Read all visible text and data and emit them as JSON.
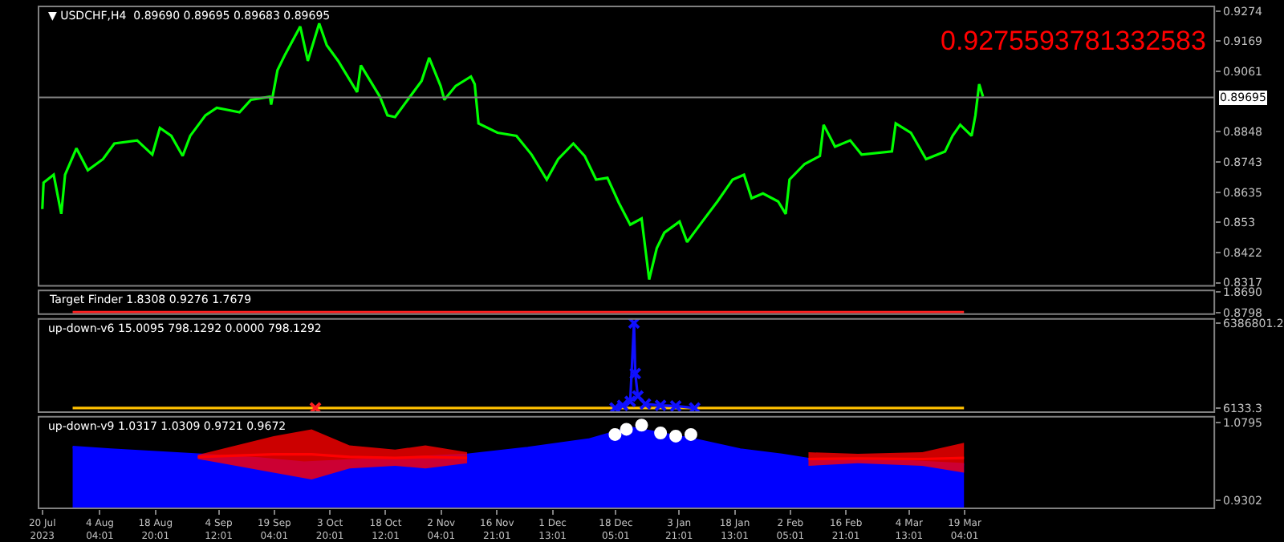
{
  "chart_data": [
    {
      "type": "line",
      "title": "▼ USDCHF,H4  0.89690 0.89695 0.89683 0.89695",
      "annotations": [
        "0.9275593781332583"
      ],
      "tick_labels": "y",
      "xlim": [
        "2023-07-19",
        "2024-05-24"
      ],
      "ylim": [
        0.8306,
        0.929
      ],
      "yticks": [
        0.9274,
        0.9169,
        0.9061,
        0.8848,
        0.8743,
        0.8635,
        0.853,
        0.8422,
        0.8317
      ],
      "ref_lines": [
        {
          "axis": "y",
          "value": 0.89695,
          "label": "0.89695",
          "color": "#808080"
        }
      ],
      "series": [
        {
          "color": "#00ff00",
          "x": [
            "2023-07-20",
            "2023-07-20T08:00",
            "2023-07-23",
            "2023-07-25",
            "2023-07-26",
            "2023-07-29",
            "2023-08-01",
            "2023-08-05",
            "2023-08-08",
            "2023-08-14",
            "2023-08-18",
            "2023-08-20",
            "2023-08-23",
            "2023-08-26",
            "2023-08-28",
            "2023-09-01",
            "2023-09-04",
            "2023-09-10",
            "2023-09-13",
            "2023-09-18",
            "2023-09-18T08:00",
            "2023-09-20",
            "2023-09-22",
            "2023-09-26",
            "2023-09-28",
            "2023-10-01",
            "2023-10-03",
            "2023-10-06",
            "2023-10-11",
            "2023-10-12",
            "2023-10-17",
            "2023-10-19",
            "2023-10-21",
            "2023-10-24",
            "2023-10-28",
            "2023-10-30",
            "2023-11-02",
            "2023-11-03",
            "2023-11-06",
            "2023-11-10",
            "2023-11-11",
            "2023-11-12",
            "2023-11-17",
            "2023-11-22",
            "2023-11-26",
            "2023-11-30",
            "2023-12-03",
            "2023-12-07",
            "2023-12-10",
            "2023-12-13",
            "2023-12-16",
            "2023-12-19",
            "2023-12-22",
            "2023-12-25",
            "2023-12-27",
            "2023-12-29",
            "2023-12-31",
            "2024-01-04",
            "2024-01-06",
            "2024-01-10",
            "2024-01-14",
            "2024-01-18",
            "2024-01-21",
            "2024-01-23",
            "2024-01-26",
            "2024-01-30",
            "2024-02-01",
            "2024-02-02",
            "2024-02-06",
            "2024-02-10",
            "2024-02-11",
            "2024-02-14",
            "2024-02-18",
            "2024-02-21",
            "2024-02-29",
            "2024-03-01",
            "2024-03-05",
            "2024-03-09",
            "2024-03-14",
            "2024-03-16",
            "2024-03-18",
            "2024-03-21",
            "2024-03-22",
            "2024-03-23",
            "2024-03-24"
          ],
          "values": [
            0.8576,
            0.8669,
            0.8697,
            0.8559,
            0.8697,
            0.879,
            0.8713,
            0.8752,
            0.8807,
            0.8818,
            0.8768,
            0.8862,
            0.8834,
            0.8763,
            0.8834,
            0.8906,
            0.8933,
            0.8917,
            0.8961,
            0.8972,
            0.8944,
            0.9065,
            0.912,
            0.9219,
            0.9098,
            0.923,
            0.9153,
            0.9098,
            0.8988,
            0.9082,
            0.8972,
            0.8906,
            0.89,
            0.8955,
            0.9027,
            0.9109,
            0.901,
            0.8961,
            0.901,
            0.9043,
            0.9016,
            0.8878,
            0.8845,
            0.8834,
            0.8768,
            0.868,
            0.8752,
            0.8807,
            0.8763,
            0.868,
            0.8686,
            0.8598,
            0.8521,
            0.8543,
            0.8328,
            0.8438,
            0.8493,
            0.8532,
            0.846,
            0.8532,
            0.8603,
            0.868,
            0.8697,
            0.8614,
            0.8631,
            0.8603,
            0.8559,
            0.868,
            0.8735,
            0.8763,
            0.8873,
            0.8796,
            0.8818,
            0.8768,
            0.8779,
            0.8878,
            0.8845,
            0.8752,
            0.8779,
            0.8834,
            0.8873,
            0.8834,
            0.8906,
            0.9016,
            0.8972
          ]
        }
      ]
    },
    {
      "type": "line",
      "title": "Target Finder 1.8308 0.9276 1.7679",
      "tick_labels": "y",
      "xlim": [
        "2023-07-19",
        "2024-05-24"
      ],
      "ylim": [
        0.8,
        1.95
      ],
      "yticks": [
        {
          "value": 1.869,
          "label": "1.8690"
        },
        0.8798
      ],
      "series": [
        {
          "color": "#ff2020",
          "x": [
            "2023-07-28",
            "2024-03-19"
          ],
          "values": [
            0.9,
            0.9
          ]
        }
      ]
    },
    {
      "type": "line",
      "title": "up-down-v6 15.0095 798.1292 0.0000 798.1292",
      "tick_labels": "y",
      "xlim": [
        "2023-07-19",
        "2024-05-24"
      ],
      "ylim": [
        -300000,
        6700000
      ],
      "yticks": [
        6386801.2,
        6133.3
      ],
      "series": [
        {
          "color": "#ffc000",
          "x": [
            "2023-07-28",
            "2024-03-19"
          ],
          "values": [
            6133.3,
            6133.3
          ]
        },
        {
          "color": "#1010ff",
          "marker": "cross",
          "x": [
            "2023-12-18",
            "2023-12-20",
            "2023-12-22",
            "2023-12-23",
            "2023-12-23T08:00",
            "2023-12-24",
            "2023-12-26",
            "2023-12-30",
            "2024-01-03",
            "2024-01-08"
          ],
          "values": [
            6133.3,
            200000,
            500000,
            6386801.2,
            2600000,
            900000,
            300000,
            200000,
            150000,
            6133.3
          ]
        },
        {
          "type": "scatter",
          "color": "#ff2020",
          "marker": "cross",
          "x": [
            "2023-09-30"
          ],
          "values": [
            6133.3
          ]
        }
      ]
    },
    {
      "type": "area",
      "title": "up-down-v9 1.0317 1.0309 0.9721 0.9672",
      "xlim": [
        "2023-07-19",
        "2024-05-24"
      ],
      "ylim": [
        0.9145,
        1.09
      ],
      "yticks": [
        1.0795,
        0.9302
      ],
      "xticks": [
        {
          "value": "2023-07-20",
          "label": "20 Jul 2023"
        },
        {
          "value": "2023-08-04T04:01",
          "label": "4 Aug 04:01"
        },
        {
          "value": "2023-08-18T20:01",
          "label": "18 Aug 20:01"
        },
        {
          "value": "2023-09-04T12:01",
          "label": "4 Sep 12:01"
        },
        {
          "value": "2023-09-19T04:01",
          "label": "19 Sep 04:01"
        },
        {
          "value": "2023-10-03T20:01",
          "label": "3 Oct 20:01"
        },
        {
          "value": "2023-10-18T12:01",
          "label": "18 Oct 12:01"
        },
        {
          "value": "2023-11-02T04:01",
          "label": "2 Nov 04:01"
        },
        {
          "value": "2023-11-16T21:01",
          "label": "16 Nov 21:01"
        },
        {
          "value": "2023-12-01T13:01",
          "label": "1 Dec 13:01"
        },
        {
          "value": "2023-12-18T05:01",
          "label": "18 Dec 05:01"
        },
        {
          "value": "2024-01-03T21:01",
          "label": "3 Jan 21:01"
        },
        {
          "value": "2024-01-18T13:01",
          "label": "18 Jan 13:01"
        },
        {
          "value": "2024-02-02T05:01",
          "label": "2 Feb 05:01"
        },
        {
          "value": "2024-02-16T21:01",
          "label": "16 Feb 21:01"
        },
        {
          "value": "2024-03-04T13:01",
          "label": "4 Mar 13:01"
        },
        {
          "value": "2024-03-19T04:01",
          "label": "19 Mar 04:01"
        }
      ],
      "series": [
        {
          "color": "#0000ff",
          "x": [
            "2023-07-28",
            "2023-08-07",
            "2023-08-31",
            "2023-09-15",
            "2023-09-27",
            "2023-10-09",
            "2023-10-17",
            "2023-11-09",
            "2023-11-25",
            "2023-12-11",
            "2023-12-22",
            "2024-01-08",
            "2024-01-20",
            "2024-01-31",
            "2024-02-07",
            "2024-02-29",
            "2024-03-19"
          ],
          "values": [
            1.032,
            1.027,
            1.017,
            1.01,
            1.002,
            1.006,
            1.009,
            1.017,
            1.03,
            1.046,
            1.069,
            1.046,
            1.027,
            1.017,
            1.009,
            1.006,
            0.999
          ]
        },
        {
          "type": "line",
          "color": "#ff0000",
          "x": [
            "2023-08-30",
            "2023-09-19",
            "2023-09-29",
            "2023-10-09",
            "2023-10-21",
            "2023-10-29",
            "2023-11-09"
          ],
          "values": [
            1.013,
            1.018,
            1.018,
            1.013,
            1.011,
            1.013,
            1.011
          ],
          "upper": [
            1.017,
            1.053,
            1.066,
            1.035,
            1.027,
            1.035,
            1.022
          ],
          "lower": [
            1.009,
            0.983,
            0.97,
            0.991,
            0.996,
            0.991,
            1.001
          ]
        },
        {
          "type": "line",
          "color": "#ff0000",
          "x": [
            "2024-02-07",
            "2024-02-20",
            "2024-03-08",
            "2024-03-19"
          ],
          "values": [
            1.009,
            1.01,
            1.009,
            1.011
          ],
          "upper": [
            1.022,
            1.019,
            1.022,
            1.04
          ],
          "lower": [
            0.996,
            1.001,
            0.996,
            0.983
          ]
        },
        {
          "type": "scatter",
          "color": "#ffffff",
          "marker": "circle",
          "x": [
            "2023-12-18",
            "2023-12-21",
            "2023-12-25",
            "2023-12-30",
            "2024-01-03",
            "2024-01-07"
          ],
          "values": [
            1.056,
            1.066,
            1.074,
            1.059,
            1.053,
            1.056
          ]
        }
      ]
    }
  ]
}
